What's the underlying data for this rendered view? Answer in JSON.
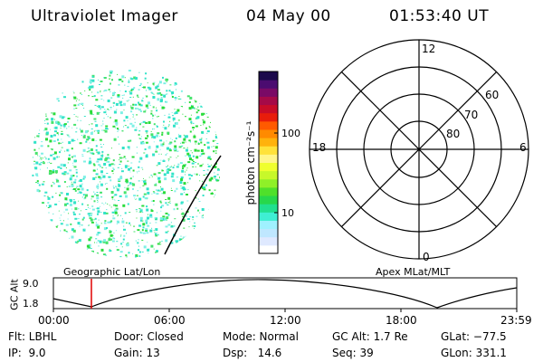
{
  "header": {
    "instrument": "Ultraviolet Imager",
    "date": "04 May 00",
    "time": "01:53:40 UT"
  },
  "colorbar": {
    "label": "photon cm⁻²s⁻¹",
    "ticks": [
      "100",
      "10"
    ],
    "colors": [
      "#ffffff",
      "#dfe9ff",
      "#bfe7ff",
      "#9ff1ff",
      "#3fefd3",
      "#21e08f",
      "#27d84b",
      "#4fe02b",
      "#8ff028",
      "#c7f82a",
      "#efff2e",
      "#fff58a",
      "#ffe23a",
      "#ffb20c",
      "#ff8a00",
      "#ff5a00",
      "#e81d0b",
      "#c80c28",
      "#a50a48",
      "#7a0a66",
      "#4b0c70",
      "#1c0a4c"
    ]
  },
  "left_panel": {
    "label": "Geographic Lat/Lon",
    "speckle_colors": [
      "#2bdc3c",
      "#45e36c",
      "#31e3c8",
      "#7ff0e6"
    ]
  },
  "polar_plot": {
    "label": "Apex MLat/MLT",
    "mlt_labels": {
      "top": "12",
      "left": "18",
      "right": "6",
      "bottom": "0"
    },
    "lat_rings": [
      "60",
      "70",
      "80"
    ]
  },
  "altitude_plot": {
    "ylabel": "GC Alt",
    "yticks": [
      "9.0",
      "1.8"
    ],
    "xticks": [
      "00:00",
      "06:00",
      "12:00",
      "18:00",
      "23:59"
    ],
    "marker_color": "#e00000"
  },
  "info": {
    "row1": {
      "filter": "Flt: LBHL",
      "door": "Door: Closed",
      "mode": "Mode: Normal",
      "gc_alt": "GC Alt: 1.7 Re",
      "glat": "GLat: −77.5"
    },
    "row2": {
      "ip": "IP:  9.0",
      "gain": "Gain: 13",
      "dsp": "Dsp:   14.6",
      "seq": "Seq: 39",
      "glon": "GLon: 331.1"
    }
  }
}
